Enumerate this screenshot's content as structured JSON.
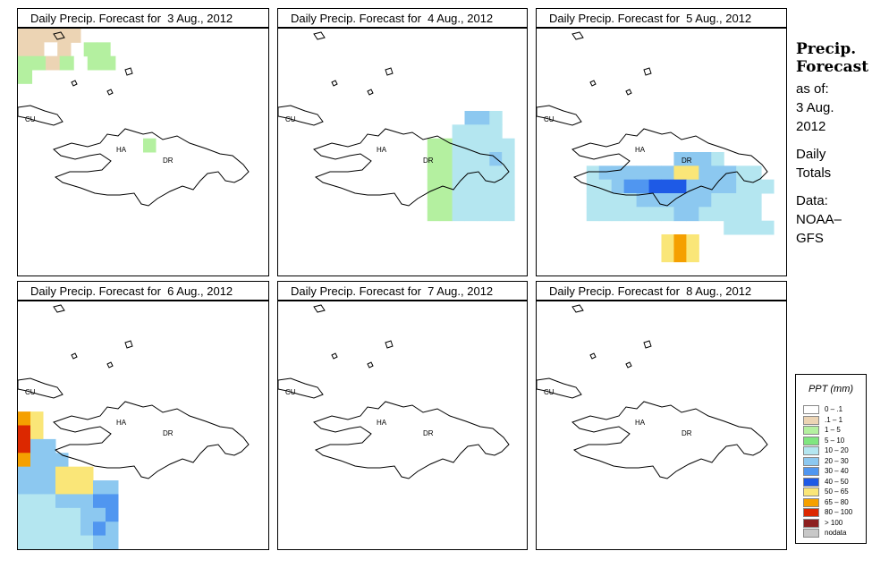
{
  "panels": [
    {
      "title": "Daily Precip. Forecast for  3 Aug., 2012",
      "date": "3 Aug., 2012"
    },
    {
      "title": "Daily Precip. Forecast for  4 Aug., 2012",
      "date": "4 Aug., 2012"
    },
    {
      "title": "Daily Precip. Forecast for  5 Aug., 2012",
      "date": "5 Aug., 2012"
    },
    {
      "title": "Daily Precip. Forecast for  6 Aug., 2012",
      "date": "6 Aug., 2012"
    },
    {
      "title": "Daily Precip. Forecast for  7 Aug., 2012",
      "date": "7 Aug., 2012"
    },
    {
      "title": "Daily Precip. Forecast for  8 Aug., 2012",
      "date": "8 Aug., 2012"
    }
  ],
  "map_labels": {
    "cuba": "CU",
    "haiti": "HA",
    "dominican_republic": "DR"
  },
  "side": {
    "title_line1": "Precip.",
    "title_line2": "Forecast",
    "as_of": "as of:",
    "date_line1": "3 Aug.",
    "date_line2": "2012",
    "totals_line1": "Daily",
    "totals_line2": "Totals",
    "data_line1": "Data:",
    "data_line2": "NOAA–",
    "data_line3": "GFS"
  },
  "legend": {
    "title": "PPT (mm)",
    "items": [
      {
        "label": "0 – .1",
        "color": "#ffffff"
      },
      {
        "label": ".1 – 1",
        "color": "#ecd4b4"
      },
      {
        "label": "1 – 5",
        "color": "#b4f0a0"
      },
      {
        "label": "5 – 10",
        "color": "#80e680"
      },
      {
        "label": "10 – 20",
        "color": "#b4e6f0"
      },
      {
        "label": "20 – 30",
        "color": "#8cc8f0"
      },
      {
        "label": "30 – 40",
        "color": "#5096f0"
      },
      {
        "label": "40 – 50",
        "color": "#1e5ae6"
      },
      {
        "label": "50 – 65",
        "color": "#fae678"
      },
      {
        "label": "65 – 80",
        "color": "#f5a000"
      },
      {
        "label": "80 – 100",
        "color": "#dc2800"
      },
      {
        "label": "> 100",
        "color": "#8c1e1e"
      },
      {
        "label": "nodata",
        "color": "#c8c8c8"
      }
    ]
  },
  "grids": [
    [
      "BBBBB000000000000000",
      "BBAB0CC000000000000",
      "CCBC0CC00000000000",
      "C00000000000000000",
      "00000000000000000000",
      "00000000000000000000",
      "00000000000000000000",
      "00000000000000000000",
      "0000000000C000000000",
      "00000000000000000000",
      "00000000000000000000",
      "00000000000000000000",
      "00000000000000000000",
      "00000000000000000000",
      "00000000000000000000",
      "00000000000000000000",
      "00000000000000000000",
      "00000000000000000000"
    ],
    [
      "0000000000000000000",
      "00000000000000000000",
      "00000000000000000000",
      "00000000000000000000",
      "00000000000000000000",
      "00000000000000000000",
      "000000000000000FFE00",
      "00000000000000EEEE00",
      "000000000000CCEEEEE0",
      "000000000000CCEEEFE0",
      "000000000000CCEEEEE0",
      "000000000000CCEEEEE0",
      "000000000000CCEEEEE0",
      "000000000000CCEEEEE0",
      "00000000000000000000",
      "00000000000000000000",
      "00000000000000000000",
      "00000000000000000000"
    ],
    [
      "00000000000000000000",
      "00000000000000000000",
      "00000000000000000000",
      "00000000000000000000",
      "00000000000000000000",
      "00000000000000000000",
      "00000000000000000000",
      "00000000000000000000",
      "0000000000000000000",
      "00000000000FFFE00000",
      "0000EFFFFFFIIFFFEE00",
      "0000EEFGGHHHFFFFEEE0",
      "0000EEEEFFFFFFEEEE00",
      "0000EEEEEEEFFEEEEE00",
      "000000000000000EEEE0",
      "0000000000IJI0000000",
      "0000000000IJI0000000",
      "00000000000000000000"
    ],
    [
      "00000000000000000000",
      "00000000000000000000",
      "00000000000000000000",
      "00000000000000000000",
      "00000000000000000000",
      "00000000000000000000",
      "00000000000000000000",
      "00000000000000000000",
      "JI000000000000000000",
      "KI000000000000000000",
      "KFF00000000000000000",
      "JFFF0000000000000000",
      "FFFIII00000000000000",
      "FFFIIIFF000000000000",
      "EEEFFFGG000000000000",
      "EEEEEFFG000000000000",
      "EEEEEFGF000000000000",
      "EEEEEEFF000000000000"
    ],
    [
      "00000000000000000000",
      "00000000000000000000",
      "00000000000000000000",
      "00000000000000000000",
      "00000000000000000000",
      "00000000000000000000",
      "00000000000000000000",
      "00000000000000000000",
      "00000000000000000000",
      "00000000000000000000",
      "00000000000000000000",
      "00000000000000000000",
      "00000000000000000000",
      "00000000000000000000",
      "00000000000000000000",
      "00000000000000000000",
      "00000000000000000000",
      "00000000000000000000"
    ],
    [
      "00000000000000000000",
      "00000000000000000000",
      "00000000000000000000",
      "00000000000000000000",
      "00000000000000000000",
      "00000000000000000000",
      "00000000000000000000",
      "00000000000000000000",
      "00000000000000000000",
      "00000000000000000000",
      "00000000000000000000",
      "00000000000000000000",
      "00000000000000000000",
      "00000000000000000000",
      "00000000000000000000",
      "00000000000000000000",
      "00000000000000000000",
      "00000000000000000000"
    ]
  ]
}
